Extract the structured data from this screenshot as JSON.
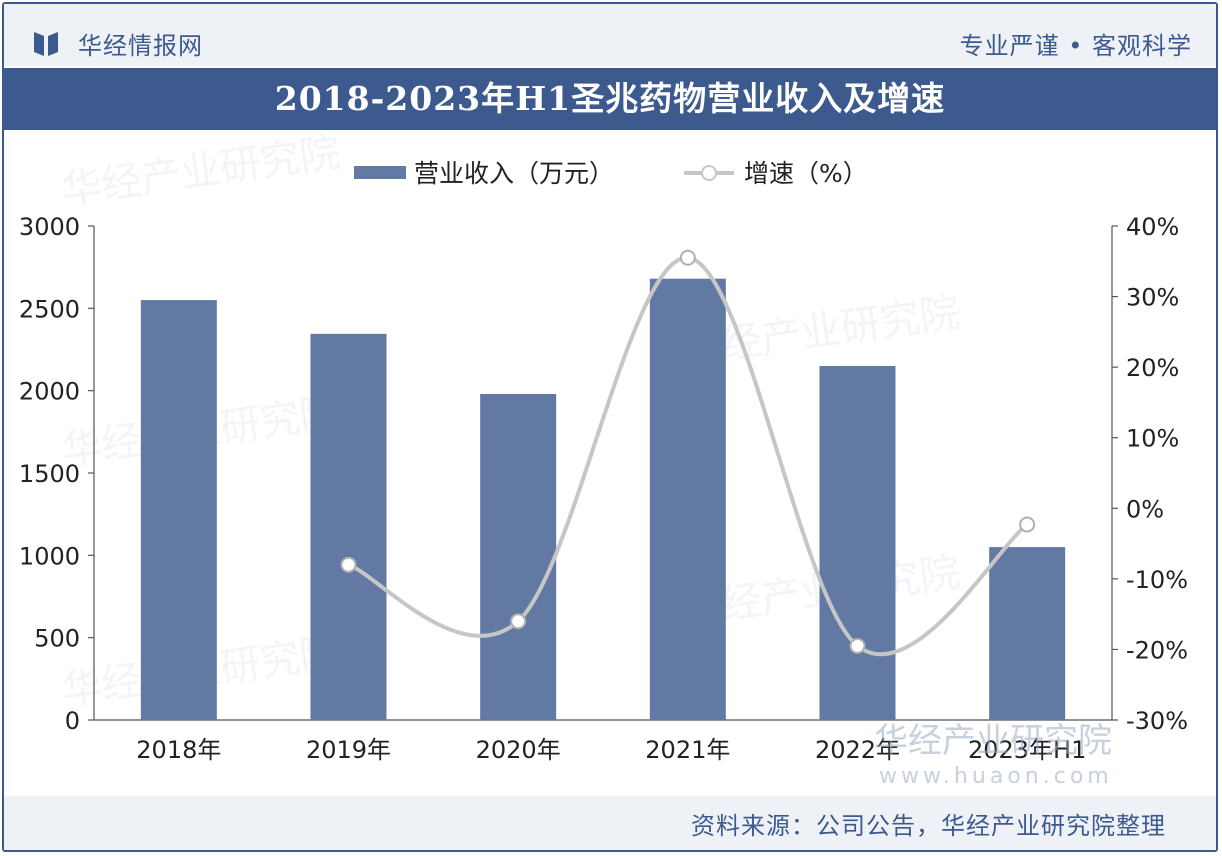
{
  "header": {
    "brand_name": "华经情报网",
    "slogan": "专业严谨 • 客观科学",
    "title": "2018-2023年H1圣兆药物营业收入及增速"
  },
  "watermark": {
    "text": "华经产业研究院",
    "url": "www.huaon.com"
  },
  "footer": {
    "source": "资料来源：公司公告，华经产业研究院整理"
  },
  "colors": {
    "bar": "#6279a4",
    "line": "#c6c6c6",
    "brand": "#3d5a8f",
    "axis_text": "#222222"
  },
  "chart_data": {
    "type": "bar",
    "title": "2018-2023年H1圣兆药物营业收入及增速",
    "categories": [
      "2018年",
      "2019年",
      "2020年",
      "2021年",
      "2022年",
      "2023年H1"
    ],
    "series": [
      {
        "name": "营业收入（万元）",
        "type": "bar",
        "axis": "left",
        "values": [
          2550,
          2345,
          1980,
          2680,
          2150,
          1050
        ]
      },
      {
        "name": "增速（%）",
        "type": "line",
        "axis": "right",
        "values": [
          null,
          -8,
          -16,
          35.5,
          -19.5,
          -2.3
        ]
      }
    ],
    "y_left": {
      "min": 0,
      "max": 3000,
      "ticks": [
        "0",
        "500",
        "1000",
        "1500",
        "2000",
        "2500",
        "3000"
      ]
    },
    "y_right": {
      "min": -30,
      "max": 40,
      "ticks": [
        "-30%",
        "-20%",
        "-10%",
        "0%",
        "10%",
        "20%",
        "30%",
        "40%"
      ]
    },
    "legend_position": "top",
    "grid": false
  }
}
